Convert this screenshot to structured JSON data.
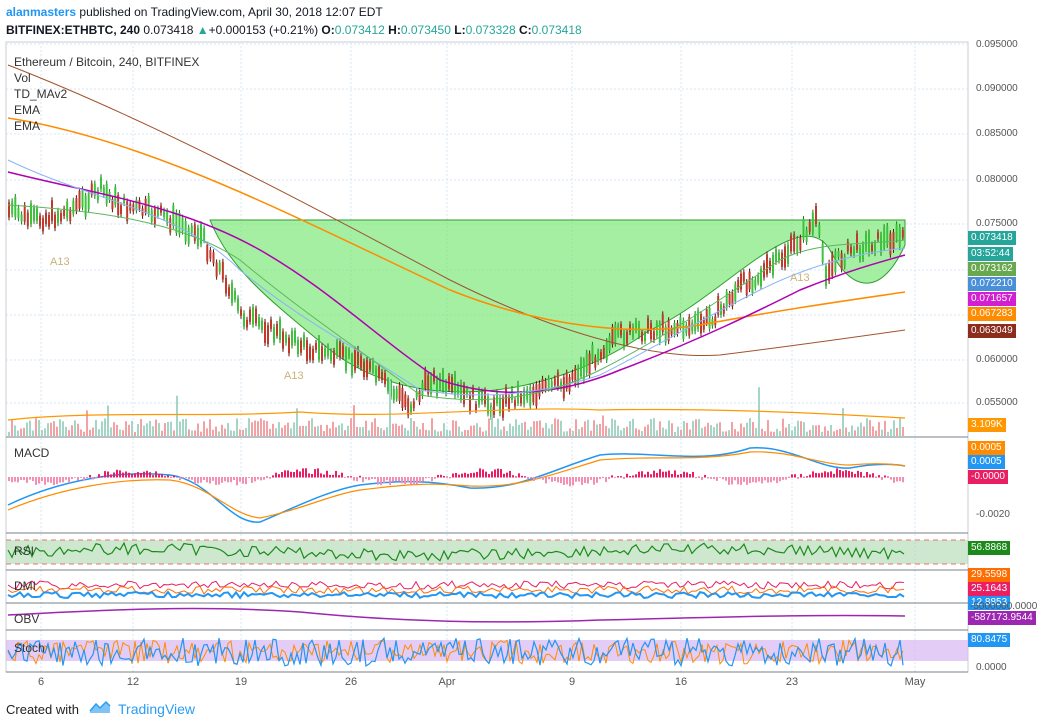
{
  "header": {
    "author": "alanmasters",
    "published_text": "published on TradingView.com, April 30, 2018 12:07 EDT",
    "symbol": "BITFINEX:ETHBTC, 240",
    "last": "0.073418",
    "change": "+0.000153 (+0.21%)",
    "open_label": "O:",
    "open": "0.073412",
    "high_label": "H:",
    "high": "0.073450",
    "low_label": "L:",
    "low": "0.073328",
    "close_label": "C:",
    "close": "0.073418"
  },
  "legend": {
    "title": "Ethereum / Bitcoin, 240, BITFINEX",
    "items": [
      "Vol",
      "TD_MAv2",
      "EMA",
      "EMA"
    ]
  },
  "panes": {
    "macd": "MACD",
    "rsi": "RSI",
    "dmi": "DMI",
    "obv": "OBV",
    "stoch": "Stoch"
  },
  "price_axis": [
    "0.095000",
    "0.090000",
    "0.085000",
    "0.080000",
    "0.075000",
    "0.060000",
    "0.055000"
  ],
  "price_tags": [
    {
      "text": "0.073418",
      "color": "#26a69a"
    },
    {
      "text": "03:52:44",
      "color": "#26a69a"
    },
    {
      "text": "0.073162",
      "color": "#6aa84f"
    },
    {
      "text": "0.072210",
      "color": "#4a90d9"
    },
    {
      "text": "0.071657",
      "color": "#d11fd1"
    },
    {
      "text": "0.067283",
      "color": "#ff8c00"
    },
    {
      "text": "0.063049",
      "color": "#8b2c1e"
    },
    {
      "text": "3.109K",
      "color": "#ff9800"
    }
  ],
  "macd_axis": {
    "tags": [
      {
        "text": "0.0005",
        "color": "#ff8c00"
      },
      {
        "text": "0.0005",
        "color": "#2196f3"
      },
      {
        "text": "-0.0000",
        "color": "#e91e63"
      }
    ],
    "label": "-0.0020"
  },
  "rsi_tag": {
    "text": "56.8868",
    "color": "#1b8a1b"
  },
  "dmi_tags": [
    {
      "text": "29.5598",
      "color": "#ff6d00"
    },
    {
      "text": "25.1643",
      "color": "#e91e63"
    },
    {
      "text": "12.8853",
      "color": "#2196f3"
    }
  ],
  "obv": {
    "axis": "-5000000.0000",
    "tag": "-587173.9544",
    "color": "#9c27b0"
  },
  "stoch": {
    "tag": "80.8475",
    "color": "#2196f3",
    "axis": "0.0000"
  },
  "x_axis": [
    "6",
    "12",
    "19",
    "26",
    "Apr",
    "9",
    "16",
    "23",
    "May"
  ],
  "markers": [
    "A13",
    "A13",
    "A13"
  ],
  "footer": {
    "created": "Created with",
    "brand": "TradingView"
  },
  "colors": {
    "up": "#26a69a",
    "down": "#ef5350",
    "cup_fill": "#7ee87a",
    "ema_orange": "#ff8c00",
    "ema_brown": "#a0522d",
    "ma_purple": "#b000b0"
  }
}
